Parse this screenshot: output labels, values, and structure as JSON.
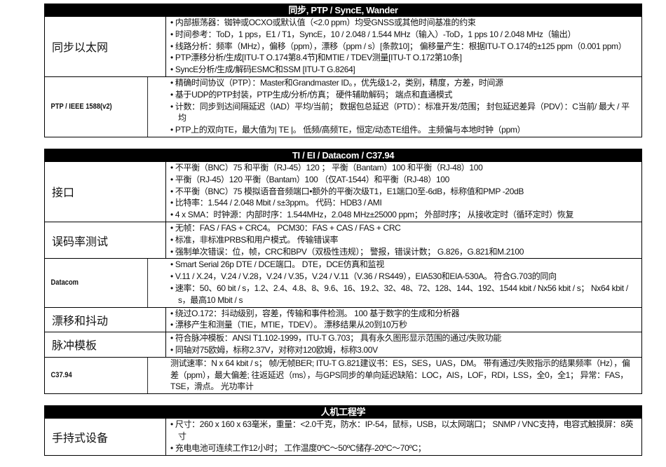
{
  "sections": [
    {
      "title": "同步, PTP / SyncE, Wander",
      "rows": [
        {
          "label": "同步以太网",
          "bullets": [
            "内部振荡器：铷钟或OCXO或默认值（<2.0 ppm）均受GNSS或其他时间基准的约束",
            "时间参考：ToD，1 pps，E1 / T1，SyncE，10 / 2.048 / 1.544 MHz（输入）-ToD，1 pps 10 / 2.048 MHz（输出）",
            "线路分析：频率（MHz），偏移（ppm），漂移（ppm / s）[条款10]； 偏移量产生：根据ITU-T O.174的±125 ppm（0.001 ppm）",
            "PTP漂移分析/生成[ITU-T O.174第8.4节]和MTIE / TDEV测量[ITU-T O.172第10条]",
            "SyncE分析/生成/解码ESMC和SSM [ITU-T G.8264]"
          ]
        },
        {
          "label": "PTP / IEEE 1588(v2)",
          "en": true,
          "bullets": [
            "精确时间协议（PTP）：Master和Grandmaster ID。，优先级1-2，类别，精度，方差，时间源",
            "基于UDP的PTP封装，PTP生成/分析/仿真； 硬件辅助解码； 端点和直通模式",
            "计数：同步到达间隔延迟（IAD）平均/当前； 数据包总延迟（PTD）：标准开发/范围； 封包延迟差异（PDV）：C当前/ 最大 / 平均",
            "PTP上的双向TE，最大值为| TE |。 低频/高频TE，恒定/动态TE组件。 主频偏与本地时钟（ppm）"
          ]
        }
      ]
    },
    {
      "title": "TI / EI / Datacom / C37.94",
      "rows": [
        {
          "label": "接口",
          "bullets": [
            "不平衡（BNC）75  和平衡（RJ-45）120 ； 平衡（Bantam）100  和平衡（RJ-48）100",
            "平衡（RJ-45）120  平衡（Bantam）100  （仅AT-1544）和平衡（RJ-48）100",
            "不平衡（BNC）75  模拟语音音频端口•额外的平衡次级T1，E1端口0至-6dB，标称值和PMP -20dB",
            "比特率：1.544 / 2.048 Mbit / s±3ppm。 代码：HDB3 / AMI",
            "4 x SMA：时钟源：内部时序：1.544MHz，2.048 MHz±25000 ppm； 外部时序； 从接收定时（循环定时）恢复"
          ]
        },
        {
          "label": "误码率测试",
          "bullets": [
            "无帧：FAS / FAS + CRC4。 PCM30：FAS + CAS / FAS + CRC",
            "标准，非标准PRBS和用户模式。 传输错误率",
            "强制单次错误：位，帧，CRC和BPV（双极性违规）； 警报，错误计数； G.826，G.821和M.2100"
          ]
        },
        {
          "label": "Datacom",
          "en": true,
          "bullets": [
            "Smart Serial 26p DTE / DCE端口。 DTE，DCE仿真和监视",
            "V.11 / X.24，V.24 / V.28，V.24 / V.35，V.24 / V.11（V.36 / RS449），EIA530和EIA-530A。 符合G.703的同向",
            "速率：50、60 bit / s，1.2、2.4、4.8、8、9.6、16、19.2、32、48、72、128、144、192、1544 kbit / Nx56 kbit / s； Nx64 kbit / s，最高10 Mbit / s"
          ]
        },
        {
          "label": "漂移和抖动",
          "bullets": [
            "绕过O.172：抖动级别，容差，传输和事件检测。 100  基于数字的生成和分析器",
            "漂移产生和测量（TIE，MTIE，TDEV）。 漂移结果从20到10万秒"
          ]
        },
        {
          "label": "脉冲模板",
          "bullets": [
            "符合脉冲模板：ANSI T1.102-1999，ITU-T G.703； 具有永久图形显示范围的通过/失败功能",
            "同轴对75欧姆，标称2.37V，对称对120欧姆，标称3.00V"
          ]
        },
        {
          "label": "C37.94",
          "en": true,
          "text": "测试速率：N x 64 kbit / s； 帧/无帧BER; ITU-T G.821建议书：ES，SES，UAS，DM。 带有通过/失败指示的结果频率（Hz），偏差（ppm），最大偏差; 往返延迟（ms），与GPS同步的单向延迟缺陷：LOC，AIS，LOF，RDI，LSS，全0，全1； 异常：FAS，TSE，滑点。 光功率计"
        }
      ]
    },
    {
      "title": "人机工程学",
      "rows": [
        {
          "label": "手持式设备",
          "bullets": [
            "尺寸：260 x 160 x 63毫米，重量：<2.0千克，防水：IP-54，鼠标，USB，以太网端口； SNMP / VNC支持，电容式触摸屏：8英寸",
            "充电电池可连续工作12小时； 工作温度0ºC～50ºC储存-20ºC～70ºC；"
          ]
        }
      ]
    }
  ]
}
